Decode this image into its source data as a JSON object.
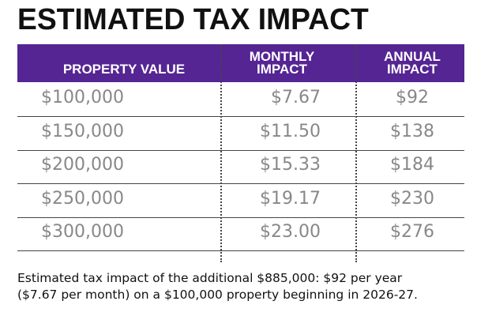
{
  "title": "ESTIMATED TAX IMPACT",
  "table": {
    "headers": [
      "PROPERTY VALUE",
      "MONTHLY IMPACT",
      "ANNUAL IMPACT"
    ],
    "rows": [
      [
        "$100,000",
        "$7.67",
        "$92"
      ],
      [
        "$150,000",
        "$11.50",
        "$138"
      ],
      [
        "$200,000",
        "$15.33",
        "$184"
      ],
      [
        "$250,000",
        "$19.17",
        "$230"
      ],
      [
        "$300,000",
        "$23.00",
        "$276"
      ]
    ]
  },
  "footnote": {
    "line1": "Estimated tax impact of the additional $885,000: $92 per year",
    "line2": "($7.67 per month) on a $100,000 property beginning in 2026-27."
  },
  "colors": {
    "header_bg": "#552593",
    "value_text": "#888888"
  }
}
